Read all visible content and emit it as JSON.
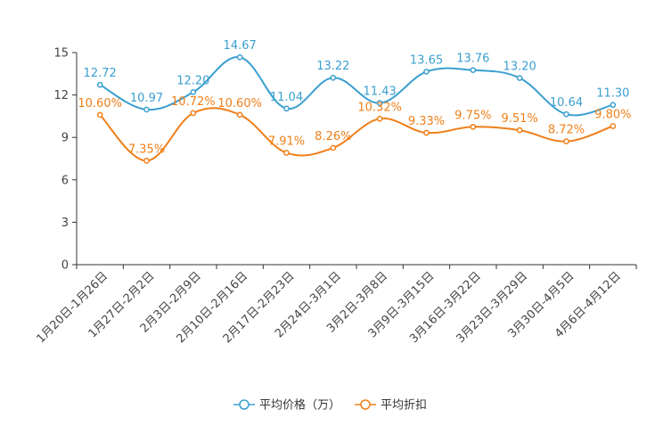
{
  "chart_data": {
    "type": "line",
    "title": "",
    "xlabel": "",
    "ylabel": "",
    "ylim": [
      0,
      15
    ],
    "yticks": [
      "0",
      "3",
      "6",
      "9",
      "12",
      "15"
    ],
    "categories": [
      "1月20日-1月26日",
      "1月27日-2月2日",
      "2月3日-2月9日",
      "2月10日-2月16日",
      "2月17日-2月23日",
      "2月24日-3月1日",
      "3月2日-3月8日",
      "3月9日-3月15日",
      "3月16日-3月22日",
      "3月23日-3月29日",
      "3月30日-4月5日",
      "4月6日-4月12日"
    ],
    "series": [
      {
        "name": "平均价格（万）",
        "color": "#3a9fd0",
        "values": [
          12.72,
          10.97,
          12.2,
          14.67,
          11.04,
          13.22,
          11.43,
          13.65,
          13.76,
          13.2,
          10.64,
          11.3
        ],
        "labels": [
          "12.72",
          "10.97",
          "12.20",
          "14.67",
          "11.04",
          "13.22",
          "11.43",
          "13.65",
          "13.76",
          "13.20",
          "10.64",
          "11.30"
        ]
      },
      {
        "name": "平均折扣",
        "color": "#f07f19",
        "values": [
          10.6,
          7.35,
          10.72,
          10.6,
          7.91,
          8.26,
          10.32,
          9.33,
          9.75,
          9.51,
          8.72,
          9.8
        ],
        "labels": [
          "10.60%",
          "7.35%",
          "10.72%",
          "10.60%",
          "7.91%",
          "8.26%",
          "10.32%",
          "9.33%",
          "9.75%",
          "9.51%",
          "8.72%",
          "9.80%"
        ]
      }
    ],
    "legend_position": "bottom-center",
    "grid": false
  }
}
